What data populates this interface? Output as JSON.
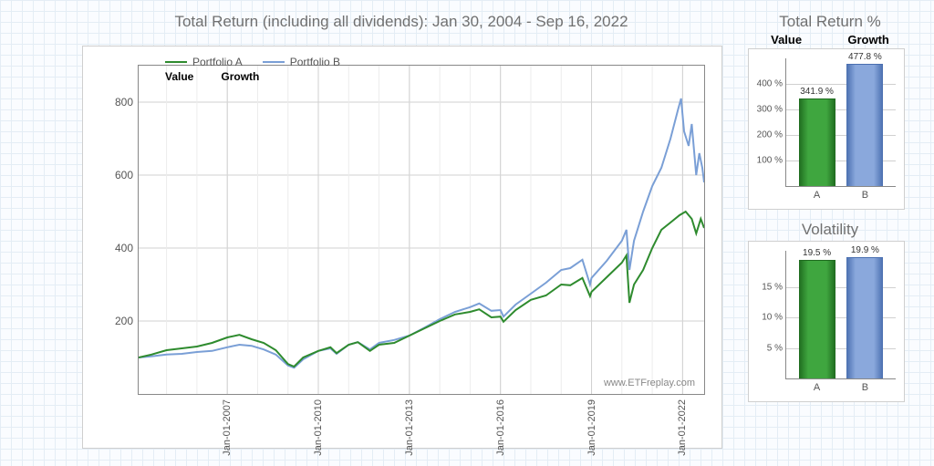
{
  "title": "Total Return (including all dividends): Jan 30, 2004 - Sep 16, 2022",
  "watermark": "www.ETFreplay.com",
  "colors": {
    "portfolio_a": "#2e8b2e",
    "portfolio_b": "#7a9fd6",
    "grid": "#d0d0d0",
    "grid_minor": "#ececec",
    "axis": "#888888",
    "panel_bg": "#ffffff",
    "panel_border": "#cfcfcf",
    "bar_a_fill": "#3fa63f",
    "bar_a_stroke": "#1f6b1f",
    "bar_b_fill": "#8aa8dc",
    "bar_b_stroke": "#4a6fb0"
  },
  "main_chart": {
    "type": "line",
    "ylim": [
      0,
      900
    ],
    "yticks": [
      200,
      400,
      600,
      800
    ],
    "x_start_year_frac": 2004.08,
    "x_end_year_frac": 2022.71,
    "xticks": [
      {
        "pos": 2007.0,
        "label": "Jan-01-2007"
      },
      {
        "pos": 2010.0,
        "label": "Jan-01-2010"
      },
      {
        "pos": 2013.0,
        "label": "Jan-01-2013"
      },
      {
        "pos": 2016.0,
        "label": "Jan-01-2016"
      },
      {
        "pos": 2019.0,
        "label": "Jan-01-2019"
      },
      {
        "pos": 2022.0,
        "label": "Jan-01-2022"
      }
    ],
    "legend": {
      "items": [
        {
          "label": "Portfolio A",
          "color_key": "portfolio_a"
        },
        {
          "label": "Portfolio B",
          "color_key": "portfolio_b"
        }
      ],
      "sublabels": [
        "Value",
        "Growth"
      ]
    },
    "series": {
      "portfolio_a": [
        [
          2004.08,
          100
        ],
        [
          2004.5,
          108
        ],
        [
          2005.0,
          120
        ],
        [
          2005.5,
          125
        ],
        [
          2006.0,
          130
        ],
        [
          2006.5,
          140
        ],
        [
          2007.0,
          155
        ],
        [
          2007.4,
          162
        ],
        [
          2007.8,
          150
        ],
        [
          2008.2,
          140
        ],
        [
          2008.6,
          120
        ],
        [
          2009.0,
          82
        ],
        [
          2009.2,
          75
        ],
        [
          2009.5,
          100
        ],
        [
          2010.0,
          118
        ],
        [
          2010.4,
          128
        ],
        [
          2010.6,
          112
        ],
        [
          2011.0,
          135
        ],
        [
          2011.3,
          142
        ],
        [
          2011.7,
          118
        ],
        [
          2012.0,
          135
        ],
        [
          2012.5,
          140
        ],
        [
          2013.0,
          160
        ],
        [
          2013.5,
          180
        ],
        [
          2014.0,
          200
        ],
        [
          2014.5,
          218
        ],
        [
          2015.0,
          225
        ],
        [
          2015.3,
          232
        ],
        [
          2015.7,
          210
        ],
        [
          2016.0,
          212
        ],
        [
          2016.1,
          198
        ],
        [
          2016.5,
          230
        ],
        [
          2017.0,
          258
        ],
        [
          2017.5,
          270
        ],
        [
          2018.0,
          300
        ],
        [
          2018.3,
          298
        ],
        [
          2018.7,
          318
        ],
        [
          2018.95,
          268
        ],
        [
          2019.0,
          280
        ],
        [
          2019.5,
          320
        ],
        [
          2020.0,
          360
        ],
        [
          2020.15,
          380
        ],
        [
          2020.25,
          250
        ],
        [
          2020.4,
          300
        ],
        [
          2020.7,
          340
        ],
        [
          2021.0,
          400
        ],
        [
          2021.3,
          450
        ],
        [
          2021.6,
          470
        ],
        [
          2021.9,
          490
        ],
        [
          2022.1,
          500
        ],
        [
          2022.3,
          480
        ],
        [
          2022.45,
          440
        ],
        [
          2022.6,
          480
        ],
        [
          2022.71,
          455
        ]
      ],
      "portfolio_b": [
        [
          2004.08,
          100
        ],
        [
          2004.5,
          103
        ],
        [
          2005.0,
          108
        ],
        [
          2005.5,
          110
        ],
        [
          2006.0,
          115
        ],
        [
          2006.5,
          118
        ],
        [
          2007.0,
          128
        ],
        [
          2007.4,
          135
        ],
        [
          2007.8,
          132
        ],
        [
          2008.2,
          122
        ],
        [
          2008.6,
          108
        ],
        [
          2009.0,
          78
        ],
        [
          2009.2,
          72
        ],
        [
          2009.5,
          95
        ],
        [
          2010.0,
          118
        ],
        [
          2010.4,
          125
        ],
        [
          2010.6,
          110
        ],
        [
          2011.0,
          135
        ],
        [
          2011.3,
          142
        ],
        [
          2011.7,
          122
        ],
        [
          2012.0,
          140
        ],
        [
          2012.5,
          148
        ],
        [
          2013.0,
          160
        ],
        [
          2013.5,
          182
        ],
        [
          2014.0,
          205
        ],
        [
          2014.5,
          225
        ],
        [
          2015.0,
          238
        ],
        [
          2015.3,
          248
        ],
        [
          2015.7,
          228
        ],
        [
          2016.0,
          230
        ],
        [
          2016.1,
          212
        ],
        [
          2016.5,
          245
        ],
        [
          2017.0,
          275
        ],
        [
          2017.5,
          305
        ],
        [
          2018.0,
          340
        ],
        [
          2018.3,
          345
        ],
        [
          2018.7,
          368
        ],
        [
          2018.95,
          300
        ],
        [
          2019.0,
          318
        ],
        [
          2019.5,
          365
        ],
        [
          2020.0,
          420
        ],
        [
          2020.15,
          450
        ],
        [
          2020.25,
          340
        ],
        [
          2020.4,
          420
        ],
        [
          2020.7,
          500
        ],
        [
          2021.0,
          570
        ],
        [
          2021.3,
          620
        ],
        [
          2021.6,
          700
        ],
        [
          2021.85,
          780
        ],
        [
          2021.95,
          810
        ],
        [
          2022.05,
          720
        ],
        [
          2022.2,
          680
        ],
        [
          2022.3,
          740
        ],
        [
          2022.45,
          600
        ],
        [
          2022.55,
          660
        ],
        [
          2022.65,
          620
        ],
        [
          2022.71,
          580
        ]
      ]
    }
  },
  "side": {
    "title": "Total Return %",
    "header": [
      "Value",
      "Growth"
    ],
    "return_chart": {
      "type": "bar",
      "ymax": 500,
      "yticks": [
        100,
        200,
        300,
        400
      ],
      "ytick_suffix": " %",
      "bars": [
        {
          "x_label": "A",
          "value": 341.9,
          "label": "341.9 %",
          "fill_key": "bar_a_fill",
          "stroke_key": "bar_a_stroke"
        },
        {
          "x_label": "B",
          "value": 477.8,
          "label": "477.8 %",
          "fill_key": "bar_b_fill",
          "stroke_key": "bar_b_stroke"
        }
      ]
    },
    "volatility_title": "Volatility",
    "volatility_chart": {
      "type": "bar",
      "ymax": 21,
      "yticks": [
        5,
        10,
        15
      ],
      "ytick_suffix": " %",
      "bars": [
        {
          "x_label": "A",
          "value": 19.5,
          "label": "19.5 %",
          "fill_key": "bar_a_fill",
          "stroke_key": "bar_a_stroke"
        },
        {
          "x_label": "B",
          "value": 19.9,
          "label": "19.9 %",
          "fill_key": "bar_b_fill",
          "stroke_key": "bar_b_stroke"
        }
      ]
    }
  }
}
